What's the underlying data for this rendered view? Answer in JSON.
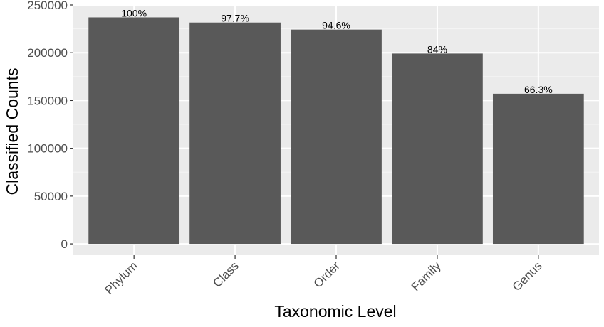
{
  "chart_data": {
    "type": "bar",
    "title": "",
    "xlabel": "Taxonomic Level",
    "ylabel": "Classified Counts",
    "categories": [
      "Phylum",
      "Class",
      "Order",
      "Family",
      "Genus"
    ],
    "values": [
      237000,
      231600,
      224200,
      199100,
      157100
    ],
    "labels": [
      "100%",
      "97.7%",
      "94.6%",
      "84%",
      "66.3%"
    ],
    "yticks": [
      0,
      50000,
      100000,
      150000,
      200000,
      250000
    ],
    "ytick_labels": [
      "0",
      "50000",
      "100000",
      "150000",
      "200000",
      "250000"
    ],
    "ylim": [
      -11850,
      250000
    ],
    "grid": true,
    "colors": {
      "bar": "#595959",
      "panel": "#ebebeb",
      "grid_major": "#ffffff",
      "grid_minor": "#f5f5f5"
    }
  }
}
